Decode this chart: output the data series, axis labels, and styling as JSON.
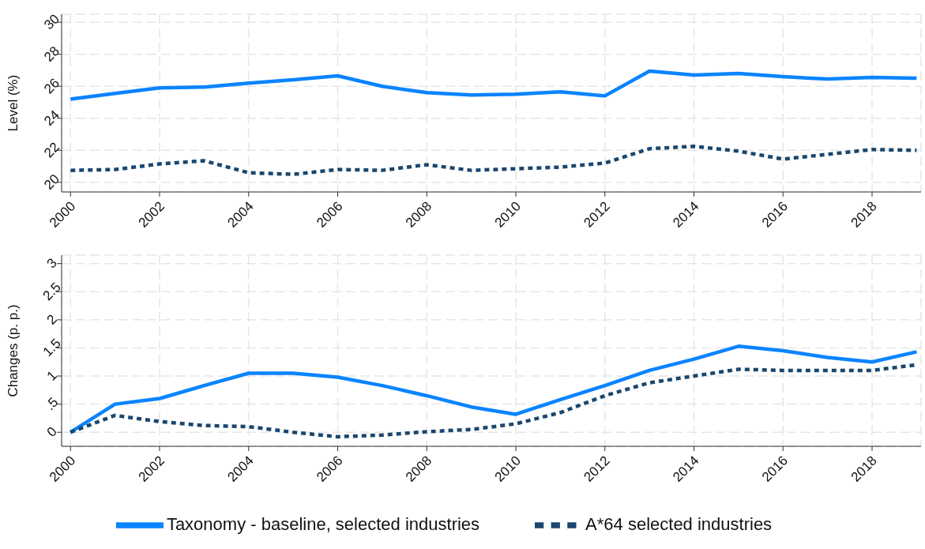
{
  "chart_data": [
    {
      "type": "line",
      "ylabel": "Level (%)",
      "x": [
        2000,
        2001,
        2002,
        2003,
        2004,
        2005,
        2006,
        2007,
        2008,
        2009,
        2010,
        2011,
        2012,
        2013,
        2014,
        2015,
        2016,
        2017,
        2018,
        2019
      ],
      "xlim": [
        1999.8,
        2019.1
      ],
      "xticks": [
        2000,
        2002,
        2004,
        2006,
        2008,
        2010,
        2012,
        2014,
        2016,
        2018
      ],
      "ylim": [
        19.4,
        30.5
      ],
      "yticks": [
        20,
        22,
        24,
        26,
        28,
        30
      ],
      "grid": true,
      "legend": false,
      "series": [
        {
          "color": "#0a84ff",
          "line_style": "solid",
          "values": [
            25.2,
            25.55,
            25.9,
            25.95,
            26.2,
            26.4,
            26.65,
            26.0,
            25.6,
            25.45,
            25.5,
            25.65,
            25.4,
            26.95,
            26.7,
            26.8,
            26.6,
            26.45,
            26.55,
            26.5
          ]
        },
        {
          "color": "#1a476f",
          "line_style": "dotted",
          "values": [
            20.75,
            20.8,
            21.15,
            21.35,
            20.6,
            20.5,
            20.8,
            20.75,
            21.1,
            20.75,
            20.85,
            20.95,
            21.2,
            22.1,
            22.25,
            21.95,
            21.45,
            21.75,
            22.05,
            22.0
          ]
        }
      ]
    },
    {
      "type": "line",
      "ylabel": "Changes (p. p.)",
      "x": [
        2000,
        2001,
        2002,
        2003,
        2004,
        2005,
        2006,
        2007,
        2008,
        2009,
        2010,
        2011,
        2012,
        2013,
        2014,
        2015,
        2016,
        2017,
        2018,
        2019
      ],
      "xlim": [
        1999.8,
        2019.1
      ],
      "xticks": [
        2000,
        2002,
        2004,
        2006,
        2008,
        2010,
        2012,
        2014,
        2016,
        2018
      ],
      "ylim": [
        -0.25,
        3.15
      ],
      "yticks": [
        0,
        {
          "value": 0.5,
          "label": ".5"
        },
        1,
        1.5,
        2,
        2.5,
        3
      ],
      "grid": true,
      "legend": "bottom",
      "series": [
        {
          "name": "Taxonomy - baseline, selected industries",
          "color": "#0a84ff",
          "line_style": "solid",
          "values": [
            0,
            0.5,
            0.6,
            0.83,
            1.05,
            1.05,
            0.98,
            0.83,
            0.65,
            0.45,
            0.32,
            0.58,
            0.83,
            1.1,
            1.3,
            1.53,
            1.45,
            1.33,
            1.25,
            1.43
          ]
        },
        {
          "name": "A*64 selected industries",
          "color": "#1a476f",
          "line_style": "dotted",
          "values": [
            0,
            0.3,
            0.19,
            0.12,
            0.1,
            0.0,
            -0.08,
            -0.05,
            0.01,
            0.05,
            0.15,
            0.35,
            0.65,
            0.88,
            1.0,
            1.12,
            1.1,
            1.1,
            1.1,
            1.2
          ]
        }
      ]
    }
  ]
}
